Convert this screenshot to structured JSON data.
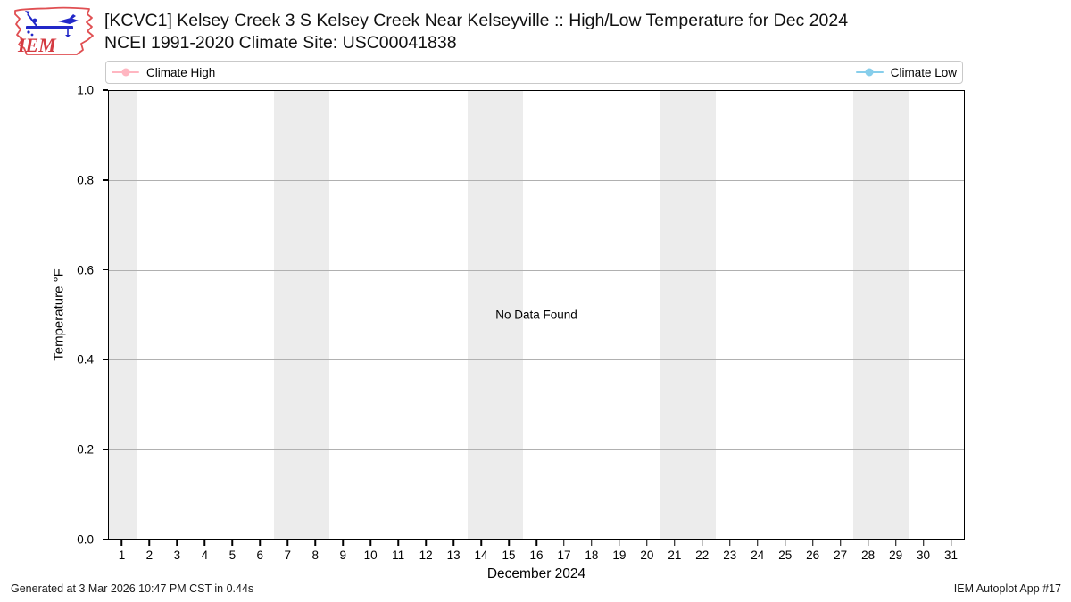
{
  "logo": {
    "text": "IEM",
    "outline_color": "#e04f52",
    "instrument_color": "#2228c8",
    "text_color": "#d43b42"
  },
  "header": {
    "title_line1": "[KCVC1] Kelsey Creek 3 S Kelsey Creek Near Kelseyville :: High/Low Temperature for Dec 2024",
    "title_line2": "NCEI 1991-2020 Climate Site: USC00041838"
  },
  "chart_data": {
    "type": "line",
    "title": "[KCVC1] Kelsey Creek 3 S Kelsey Creek Near Kelseyville :: High/Low Temperature for Dec 2024",
    "subtitle": "NCEI 1991-2020 Climate Site: USC00041838",
    "xlabel": "December 2024",
    "ylabel": "Temperature °F",
    "xlim": [
      0.5,
      31.5
    ],
    "ylim": [
      0.0,
      1.0
    ],
    "x": [
      1,
      2,
      3,
      4,
      5,
      6,
      7,
      8,
      9,
      10,
      11,
      12,
      13,
      14,
      15,
      16,
      17,
      18,
      19,
      20,
      21,
      22,
      23,
      24,
      25,
      26,
      27,
      28,
      29,
      30,
      31
    ],
    "yticks": [
      {
        "v": 0.0,
        "label": "0.0"
      },
      {
        "v": 0.2,
        "label": "0.2"
      },
      {
        "v": 0.4,
        "label": "0.4"
      },
      {
        "v": 0.6,
        "label": "0.6"
      },
      {
        "v": 0.8,
        "label": "0.8"
      },
      {
        "v": 1.0,
        "label": "1.0"
      }
    ],
    "series": [
      {
        "name": "Climate High",
        "color": "#ffb6c1",
        "values": []
      },
      {
        "name": "Climate Low",
        "color": "#87ceeb",
        "values": []
      }
    ],
    "no_data_text": "No Data Found",
    "weekend_bands": [
      [
        0.5,
        1.5
      ],
      [
        6.5,
        8.5
      ],
      [
        13.5,
        15.5
      ],
      [
        20.5,
        22.5
      ],
      [
        27.5,
        29.5
      ]
    ],
    "band_color": "#ececec",
    "grid": "horizontal",
    "grid_color": "#b0b0b0",
    "legend_position": "top-expanded"
  },
  "footer": {
    "left": "Generated at 3 Mar 2026 10:47 PM CST in 0.44s",
    "right": "IEM Autoplot App #17"
  }
}
